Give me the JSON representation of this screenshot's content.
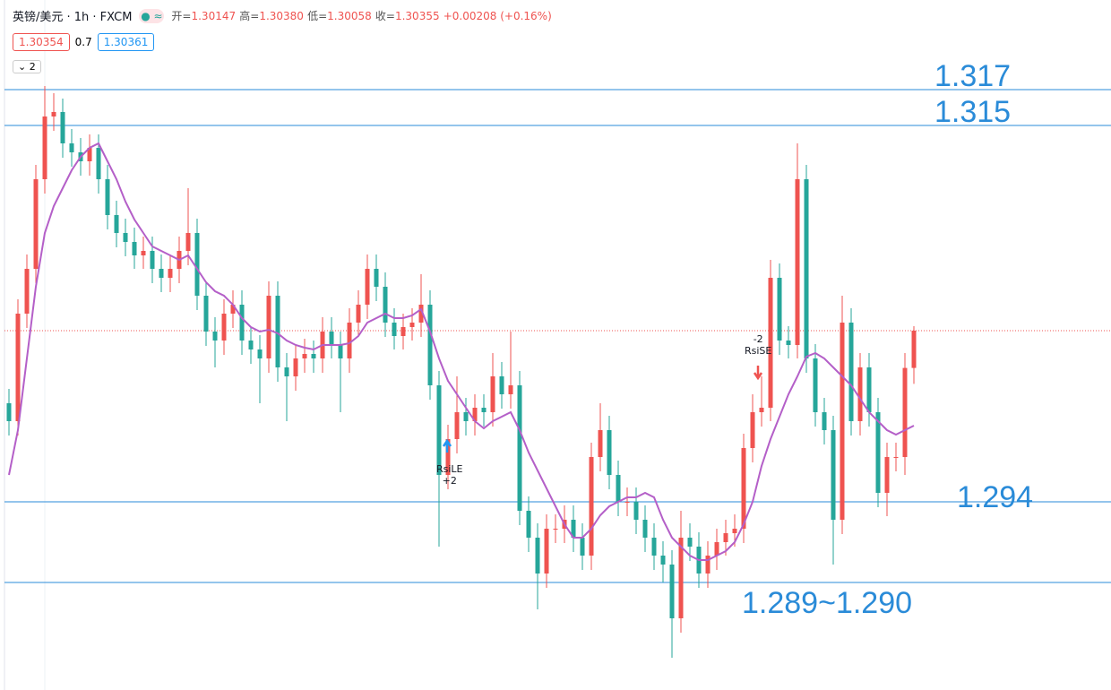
{
  "header": {
    "symbol": "英镑/美元 · 1h · FXCM",
    "ohlc": [
      {
        "label": "开=",
        "value": "1.30147"
      },
      {
        "label": "高=",
        "value": "1.30380"
      },
      {
        "label": "低=",
        "value": "1.30058"
      },
      {
        "label": "收=",
        "value": "1.30355"
      }
    ],
    "change": "+0.00208 (+0.16%)",
    "bid": "1.30354",
    "spread": "0.7",
    "ask": "1.30361",
    "collapse": "2"
  },
  "signals": [
    {
      "label": "RsiLE",
      "qty": "+2"
    },
    {
      "label": "RsiSE",
      "qty": "-2"
    }
  ],
  "chart_data": {
    "type": "candlestick",
    "ylim": [
      1.2835,
      1.322
    ],
    "up_color": "#ef5350",
    "down_color": "#26a69a",
    "open": [
      1.2995,
      1.2985,
      1.3045,
      1.307,
      1.312,
      1.3155,
      1.31575,
      1.314,
      1.3135,
      1.313,
      1.31375,
      1.312,
      1.31,
      1.309,
      1.3085,
      1.30775,
      1.308,
      1.307,
      1.3065,
      1.307,
      1.308,
      1.309,
      1.3055,
      1.3035,
      1.303,
      1.3045,
      1.305,
      1.303,
      1.3025,
      1.302,
      1.3055,
      1.3015,
      1.301,
      1.302,
      1.30225,
      1.302,
      1.3035,
      1.30275,
      1.302,
      1.304,
      1.305,
      1.307,
      1.306,
      1.304,
      1.30325,
      1.30375,
      1.304,
      1.305,
      1.3005,
      1.2955,
      1.2975,
      1.299,
      1.2985,
      1.29925,
      1.299,
      1.301,
      1.3,
      1.3005,
      1.2935,
      1.292,
      1.29,
      1.2925,
      1.2925,
      1.293,
      1.292,
      1.291,
      1.2965,
      1.298,
      1.2955,
      1.294,
      1.294,
      1.293,
      1.292,
      1.291,
      1.2905,
      1.2875,
      1.292,
      1.2915,
      1.29,
      1.291,
      1.29175,
      1.29225,
      1.2925,
      1.297,
      1.299,
      1.29925,
      1.3065,
      1.303,
      1.30275,
      1.312,
      1.302,
      1.299,
      1.298,
      1.293,
      1.304,
      1.2985,
      1.3015,
      1.299,
      1.2945,
      1.2965,
      1.2965,
      1.30147
    ],
    "high": [
      1.3003,
      1.3053,
      1.3078,
      1.3128,
      1.3172,
      1.3168,
      1.3165,
      1.3148,
      1.3143,
      1.3145,
      1.3145,
      1.3128,
      1.3108,
      1.3098,
      1.3093,
      1.3088,
      1.3088,
      1.3078,
      1.3078,
      1.3088,
      1.3115,
      1.3098,
      1.3063,
      1.3043,
      1.3053,
      1.3058,
      1.3058,
      1.3038,
      1.3033,
      1.3063,
      1.3063,
      1.3023,
      1.3028,
      1.3031,
      1.303,
      1.3043,
      1.3043,
      1.3035,
      1.3048,
      1.3058,
      1.3078,
      1.3078,
      1.3068,
      1.3048,
      1.3045,
      1.3048,
      1.3067,
      1.3058,
      1.3013,
      1.2983,
      1.301,
      1.2998,
      1.3,
      1.3,
      1.3023,
      1.3018,
      1.3035,
      1.3013,
      1.2943,
      1.2928,
      1.2933,
      1.2933,
      1.2938,
      1.2938,
      1.2928,
      1.2973,
      1.2995,
      1.2988,
      1.2963,
      1.2948,
      1.2948,
      1.2938,
      1.2928,
      1.2918,
      1.2913,
      1.2935,
      1.2928,
      1.2923,
      1.2918,
      1.2925,
      1.293,
      1.2933,
      1.2978,
      1.3,
      1.301,
      1.3075,
      1.3073,
      1.3038,
      1.314,
      1.3128,
      1.3028,
      1.2998,
      1.2988,
      1.3055,
      1.3048,
      1.3023,
      1.3023,
      1.2998,
      1.2973,
      1.2973,
      1.3023,
      1.3038
    ],
    "low": [
      1.2977,
      1.2977,
      1.3037,
      1.3062,
      1.3112,
      1.3147,
      1.3132,
      1.3127,
      1.3122,
      1.3122,
      1.3112,
      1.3092,
      1.3082,
      1.3077,
      1.307,
      1.307,
      1.3062,
      1.3057,
      1.3057,
      1.3062,
      1.3072,
      1.3047,
      1.3027,
      1.3015,
      1.3022,
      1.3037,
      1.3022,
      1.3017,
      1.2995,
      1.3012,
      1.3007,
      1.2985,
      1.3002,
      1.3012,
      1.3012,
      1.3012,
      1.302,
      1.299,
      1.3012,
      1.3032,
      1.3042,
      1.3052,
      1.3032,
      1.3025,
      1.3025,
      1.303,
      1.3032,
      1.2997,
      1.2915,
      1.2947,
      1.2967,
      1.2977,
      1.2977,
      1.2982,
      1.2982,
      1.2992,
      1.2992,
      1.2927,
      1.2912,
      1.288,
      1.2892,
      1.2917,
      1.2917,
      1.2912,
      1.2902,
      1.2902,
      1.2957,
      1.2947,
      1.2932,
      1.2932,
      1.2922,
      1.2912,
      1.2902,
      1.2895,
      1.2853,
      1.2867,
      1.2907,
      1.2892,
      1.2892,
      1.2902,
      1.291,
      1.2915,
      1.2917,
      1.2962,
      1.2982,
      1.2985,
      1.3022,
      1.302,
      1.302,
      1.3012,
      1.2982,
      1.2972,
      1.2905,
      1.2922,
      1.2977,
      1.2977,
      1.2982,
      1.2937,
      1.2932,
      1.2957,
      1.2955,
      1.30058
    ],
    "close": [
      1.2985,
      1.3045,
      1.307,
      1.312,
      1.3155,
      1.31575,
      1.314,
      1.3135,
      1.313,
      1.31375,
      1.312,
      1.31,
      1.309,
      1.3085,
      1.30775,
      1.308,
      1.307,
      1.3065,
      1.307,
      1.308,
      1.309,
      1.3055,
      1.3035,
      1.303,
      1.3045,
      1.305,
      1.303,
      1.3025,
      1.302,
      1.3055,
      1.3015,
      1.301,
      1.302,
      1.30225,
      1.302,
      1.3035,
      1.30275,
      1.302,
      1.304,
      1.305,
      1.307,
      1.306,
      1.304,
      1.30325,
      1.30375,
      1.304,
      1.305,
      1.3005,
      1.2955,
      1.2975,
      1.299,
      1.2985,
      1.29925,
      1.299,
      1.301,
      1.3,
      1.3005,
      1.2935,
      1.292,
      1.29,
      1.2925,
      1.2925,
      1.293,
      1.292,
      1.291,
      1.2965,
      1.298,
      1.2955,
      1.294,
      1.294,
      1.293,
      1.292,
      1.291,
      1.2905,
      1.2875,
      1.292,
      1.2915,
      1.29,
      1.291,
      1.29175,
      1.29225,
      1.2925,
      1.297,
      1.299,
      1.29925,
      1.3065,
      1.303,
      1.30275,
      1.312,
      1.302,
      1.299,
      1.298,
      1.293,
      1.304,
      1.2985,
      1.3015,
      1.299,
      1.2945,
      1.2965,
      1.2965,
      1.30147,
      1.30355
    ],
    "ma": {
      "color": "#b45fc8",
      "values": [
        1.2955,
        1.298,
        1.302,
        1.306,
        1.309,
        1.3105,
        1.3115,
        1.3125,
        1.31325,
        1.31375,
        1.314,
        1.313,
        1.312,
        1.31075,
        1.30975,
        1.309,
        1.30825,
        1.308,
        1.30775,
        1.3075,
        1.30775,
        1.307,
        1.30625,
        1.30575,
        1.3055,
        1.305,
        1.30425,
        1.30375,
        1.3035,
        1.3036,
        1.3034,
        1.303,
        1.30275,
        1.3026,
        1.3025,
        1.30275,
        1.30275,
        1.30275,
        1.30285,
        1.30325,
        1.304,
        1.30425,
        1.3045,
        1.30425,
        1.30425,
        1.3044,
        1.30475,
        1.3035,
        1.302,
        1.30075,
        1.3,
        1.29925,
        1.2985,
        1.2981,
        1.2985,
        1.29875,
        1.299,
        1.298,
        1.29675,
        1.29575,
        1.29475,
        1.29375,
        1.29275,
        1.292,
        1.292,
        1.2925,
        1.29325,
        1.29375,
        1.294,
        1.29425,
        1.29425,
        1.2945,
        1.29425,
        1.293,
        1.292,
        1.2915,
        1.291,
        1.29075,
        1.29075,
        1.291,
        1.29125,
        1.29175,
        1.29275,
        1.294,
        1.296,
        1.2975,
        1.29875,
        1.3,
        1.301,
        1.3021,
        1.3023,
        1.302,
        1.3015,
        1.301,
        1.3005,
        1.29975,
        1.299,
        1.2985,
        1.298,
        1.29775,
        1.298,
        1.29825
      ]
    },
    "last_price": 1.30355,
    "last_color": "#ef5350",
    "levels_color": "#2a8bd8",
    "levels": [
      1.317,
      1.315,
      1.294,
      {
        "value": 1.2895,
        "label": "1.289~1.290"
      }
    ]
  }
}
